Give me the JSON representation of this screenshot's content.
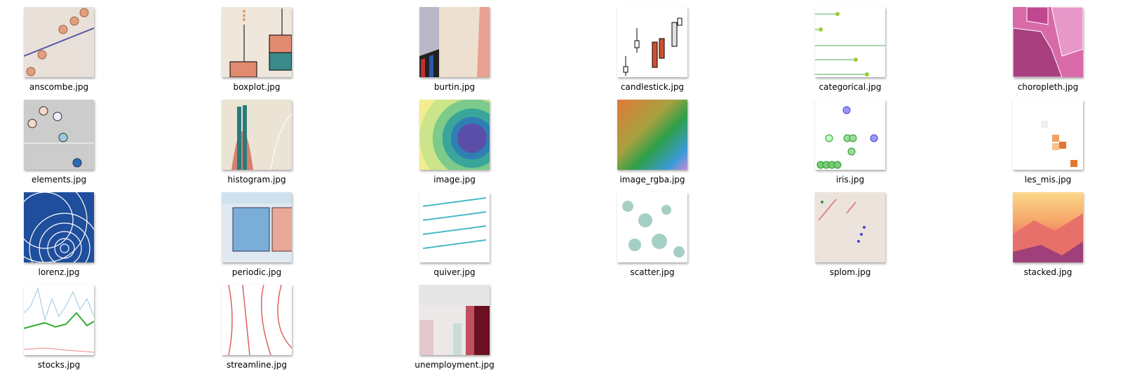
{
  "files": [
    "anscombe.jpg",
    "boxplot.jpg",
    "burtin.jpg",
    "candlestick.jpg",
    "categorical.jpg",
    "choropleth.jpg",
    "elements.jpg",
    "histogram.jpg",
    "image.jpg",
    "image_rgba.jpg",
    "iris.jpg",
    "les_mis.jpg",
    "lorenz.jpg",
    "periodic.jpg",
    "quiver.jpg",
    "scatter.jpg",
    "splom.jpg",
    "stacked.jpg",
    "stocks.jpg",
    "streamline.jpg",
    "unemployment.jpg"
  ]
}
